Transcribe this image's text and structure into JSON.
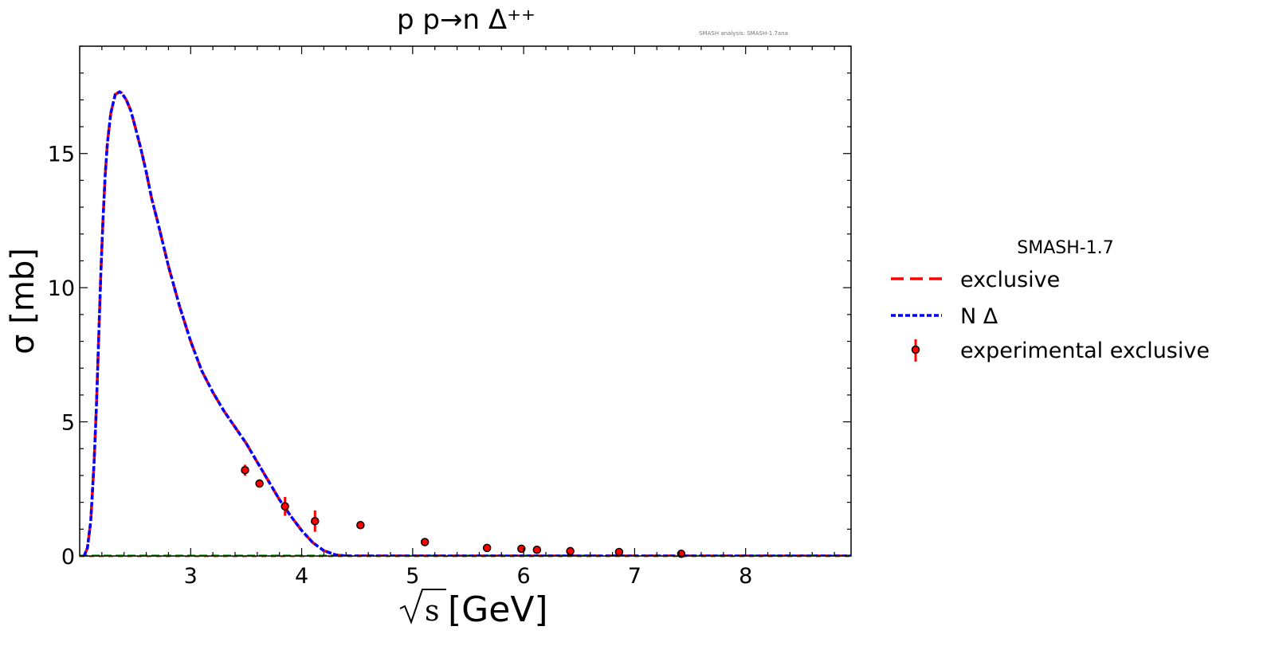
{
  "chart_data": {
    "type": "line",
    "title": "p p→n Δ⁺⁺",
    "watermark": "SMASH analysis: SMASH-1.7ana",
    "xlabel_main": "s",
    "xlabel_unit": "[GeV]",
    "ylabel": "σ [mb]",
    "xlim": [
      2.0,
      8.95
    ],
    "ylim": [
      0,
      19.0
    ],
    "xticks": [
      3,
      4,
      5,
      6,
      7,
      8
    ],
    "yticks": [
      0,
      5,
      10,
      15
    ],
    "grid": false,
    "legend": {
      "placement": "right-outside",
      "title": "SMASH-1.7",
      "entries": [
        "exclusive",
        "N Δ",
        "experimental exclusive"
      ]
    },
    "colors": {
      "exclusive": "#ff0000",
      "n_delta": "#0000ff",
      "experimental": "#ff0000"
    },
    "series": [
      {
        "name": "exclusive",
        "style": "dashed",
        "x": [
          2.04,
          2.07,
          2.1,
          2.13,
          2.15,
          2.17,
          2.19,
          2.21,
          2.23,
          2.25,
          2.28,
          2.32,
          2.36,
          2.38,
          2.42,
          2.46,
          2.5,
          2.55,
          2.6,
          2.65,
          2.7,
          2.8,
          2.9,
          3.0,
          3.1,
          3.2,
          3.3,
          3.4,
          3.5,
          3.6,
          3.7,
          3.8,
          3.9,
          4.0,
          4.1,
          4.2,
          4.3,
          4.35,
          4.4,
          4.5,
          5.0,
          6.0,
          7.0,
          8.0,
          8.95
        ],
        "y": [
          0.0,
          0.3,
          1.3,
          3.5,
          5.5,
          8.0,
          10.5,
          12.5,
          14.2,
          15.4,
          16.5,
          17.2,
          17.3,
          17.25,
          17.0,
          16.6,
          16.0,
          15.2,
          14.3,
          13.3,
          12.5,
          10.8,
          9.3,
          8.0,
          6.9,
          6.1,
          5.4,
          4.8,
          4.2,
          3.5,
          2.8,
          2.1,
          1.5,
          0.95,
          0.5,
          0.2,
          0.05,
          0.02,
          0.0,
          0.0,
          0.0,
          0.0,
          0.0,
          0.0,
          0.0
        ]
      },
      {
        "name": "N Δ",
        "style": "dotted",
        "x": [
          2.04,
          2.07,
          2.1,
          2.13,
          2.15,
          2.17,
          2.19,
          2.21,
          2.23,
          2.25,
          2.28,
          2.32,
          2.36,
          2.38,
          2.42,
          2.46,
          2.5,
          2.55,
          2.6,
          2.65,
          2.7,
          2.8,
          2.9,
          3.0,
          3.1,
          3.2,
          3.3,
          3.4,
          3.5,
          3.6,
          3.7,
          3.8,
          3.9,
          4.0,
          4.1,
          4.2,
          4.3,
          4.35,
          4.4,
          4.5,
          5.0,
          6.0,
          7.0,
          8.0,
          8.95
        ],
        "y": [
          0.0,
          0.3,
          1.3,
          3.5,
          5.5,
          8.0,
          10.5,
          12.5,
          14.2,
          15.4,
          16.5,
          17.2,
          17.3,
          17.25,
          17.0,
          16.6,
          16.0,
          15.2,
          14.3,
          13.3,
          12.5,
          10.8,
          9.3,
          8.0,
          6.9,
          6.1,
          5.4,
          4.8,
          4.2,
          3.5,
          2.8,
          2.1,
          1.5,
          0.95,
          0.5,
          0.2,
          0.05,
          0.02,
          0.0,
          0.0,
          0.0,
          0.0,
          0.0,
          0.0,
          0.0
        ]
      },
      {
        "name": "experimental exclusive",
        "style": "errorbar",
        "points": [
          {
            "x": 3.49,
            "y": 3.2,
            "err": 0.2
          },
          {
            "x": 3.62,
            "y": 2.7,
            "err": 0.15
          },
          {
            "x": 3.85,
            "y": 1.85,
            "err": 0.35
          },
          {
            "x": 4.12,
            "y": 1.3,
            "err": 0.4
          },
          {
            "x": 4.53,
            "y": 1.15,
            "err": 0.12
          },
          {
            "x": 5.11,
            "y": 0.52,
            "err": 0.05
          },
          {
            "x": 5.67,
            "y": 0.3,
            "err": 0.04
          },
          {
            "x": 5.98,
            "y": 0.27,
            "err": 0.04
          },
          {
            "x": 6.12,
            "y": 0.23,
            "err": 0.04
          },
          {
            "x": 6.42,
            "y": 0.18,
            "err": 0.03
          },
          {
            "x": 6.86,
            "y": 0.15,
            "err": 0.03
          },
          {
            "x": 7.42,
            "y": 0.08,
            "err": 0.02
          }
        ]
      }
    ]
  }
}
